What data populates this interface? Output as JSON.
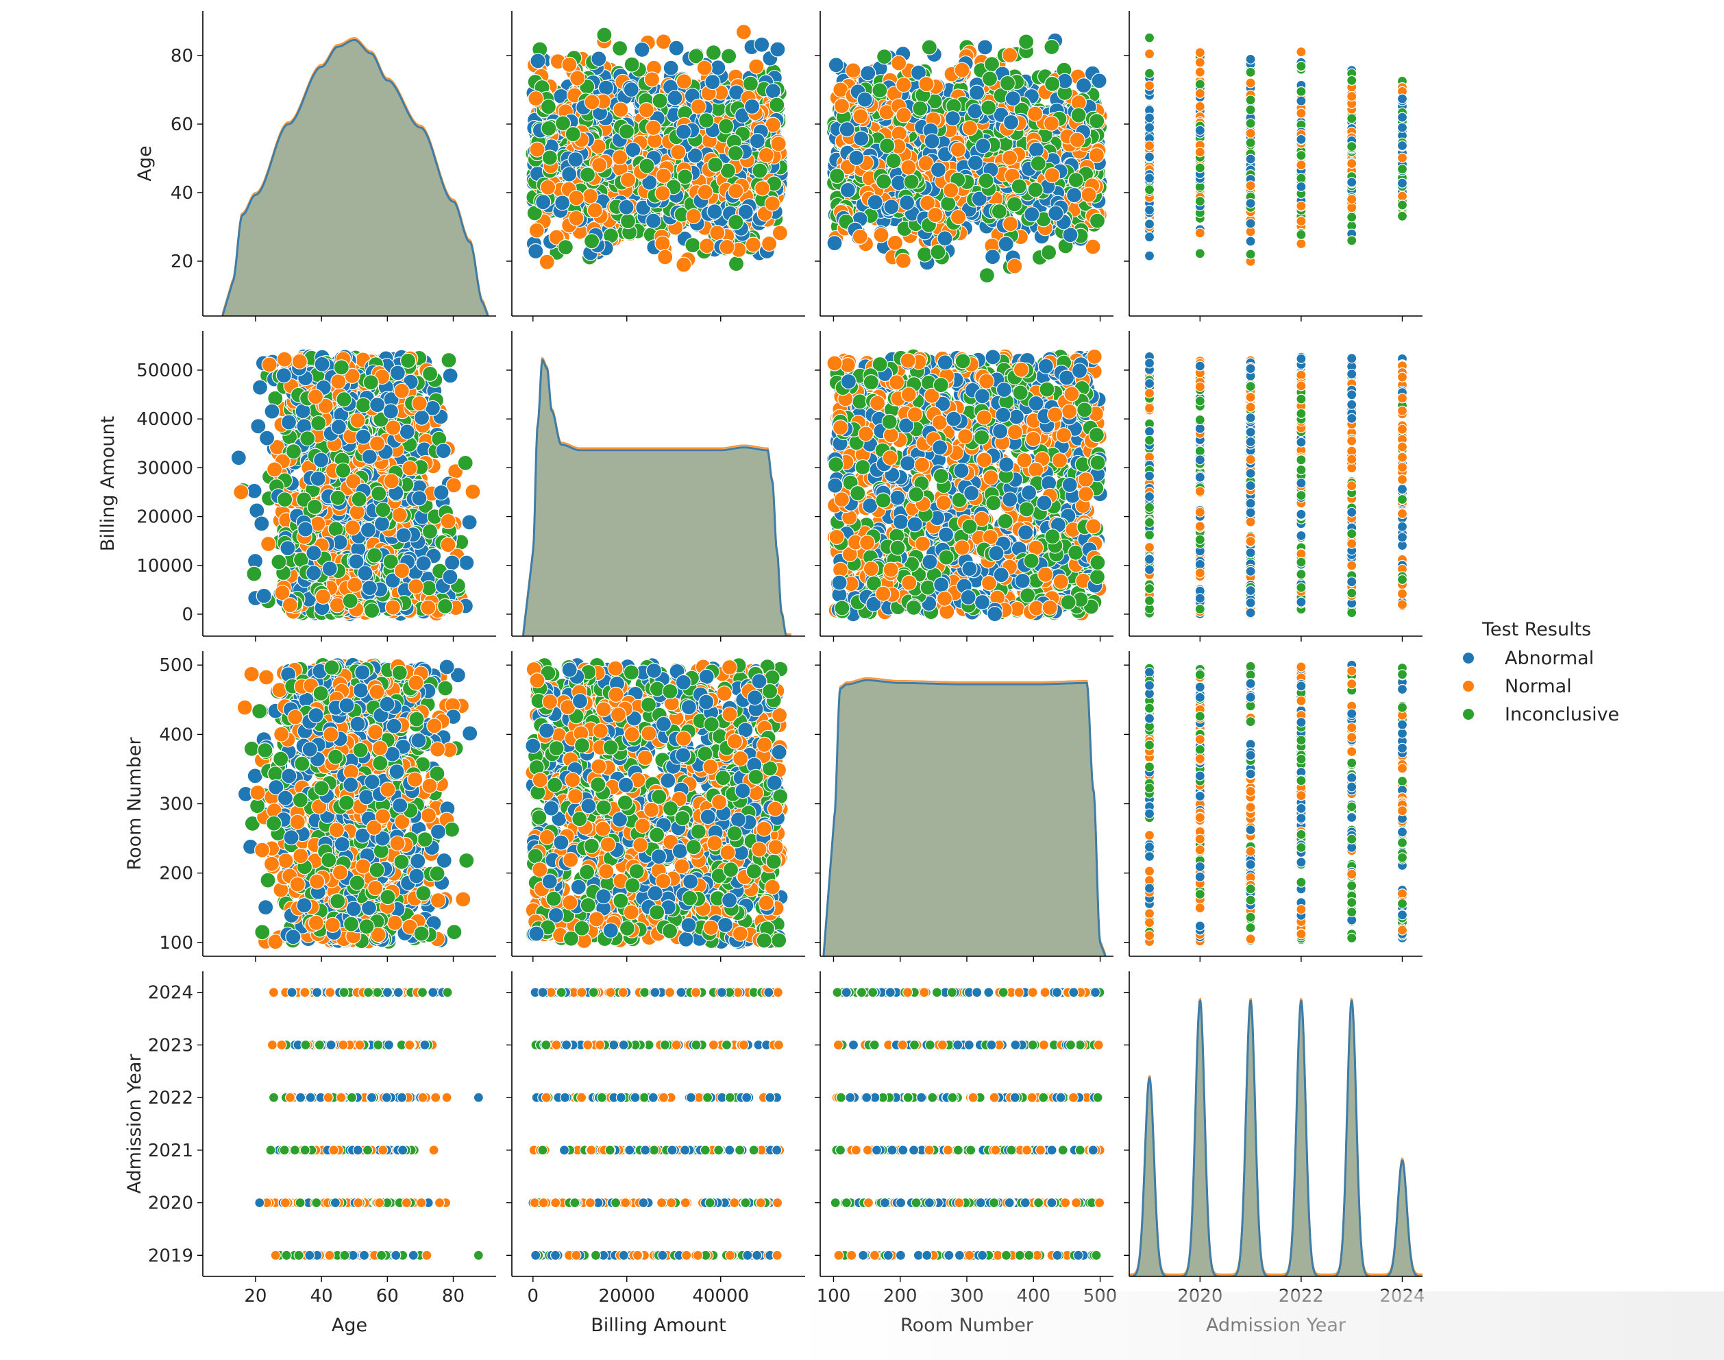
{
  "chart_data": {
    "type": "scatter",
    "subtype": "pairplot",
    "variables": [
      "Age",
      "Billing Amount",
      "Room Number",
      "Admission Year"
    ],
    "hue": "Test Results",
    "legend": {
      "title": "Test Results",
      "placement": "right",
      "entries": [
        {
          "name": "Abnormal",
          "color": "#1f77b4"
        },
        {
          "name": "Normal",
          "color": "#ff7f0e"
        },
        {
          "name": "Inconclusive",
          "color": "#2ca02c"
        }
      ]
    },
    "axes": {
      "Age": {
        "label": "Age",
        "range": [
          4,
          93
        ],
        "ticks": [
          20,
          40,
          60,
          80
        ],
        "data_min": 13,
        "data_max": 89
      },
      "Billing Amount": {
        "label": "Billing Amount",
        "range": [
          -4500,
          58000
        ],
        "ticks": [
          0,
          10000,
          20000,
          30000,
          40000,
          50000
        ],
        "xticks": [
          0,
          20000,
          40000
        ],
        "data_min": 0,
        "data_max": 52800
      },
      "Room Number": {
        "label": "Room Number",
        "range": [
          80,
          520
        ],
        "ticks": [
          100,
          200,
          300,
          400,
          500
        ],
        "data_min": 101,
        "data_max": 500
      },
      "Admission Year": {
        "label": "Admission Year",
        "range": [
          2018.6,
          2024.4
        ],
        "ticks": [
          2019,
          2020,
          2021,
          2022,
          2023,
          2024
        ],
        "xticks": [
          2020,
          2022,
          2024
        ],
        "data_min": 2019,
        "data_max": 2024
      }
    },
    "diagonal": {
      "type": "kde",
      "Age": {
        "x": [
          13,
          16,
          20,
          30,
          40,
          45,
          50,
          55,
          60,
          70,
          80,
          85,
          89
        ],
        "density": [
          0.005,
          0.015,
          0.018,
          0.0285,
          0.037,
          0.04,
          0.041,
          0.039,
          0.035,
          0.028,
          0.017,
          0.011,
          0.002
        ]
      },
      "Billing Amount": {
        "x": [
          0,
          1000,
          2000,
          3000,
          4000,
          6000,
          10000,
          20000,
          30000,
          40000,
          45000,
          50000,
          51000,
          52000,
          53000,
          54000
        ],
        "density": [
          0.3,
          0.75,
          0.98,
          0.95,
          0.8,
          0.68,
          0.66,
          0.66,
          0.66,
          0.66,
          0.67,
          0.66,
          0.55,
          0.3,
          0.08,
          0.0
        ]
      },
      "Room Number": {
        "x": [
          101,
          110,
          120,
          150,
          200,
          300,
          400,
          480,
          490,
          500
        ],
        "density": [
          0.5,
          0.97,
          0.985,
          1.0,
          0.99,
          0.985,
          0.985,
          0.99,
          0.6,
          0.05
        ]
      },
      "Admission Year": {
        "peaks": [
          2019,
          2020,
          2021,
          2022,
          2023,
          2024
        ],
        "relative_heights": [
          0.72,
          1.0,
          1.0,
          1.0,
          1.0,
          0.42
        ]
      }
    },
    "grid": false
  }
}
